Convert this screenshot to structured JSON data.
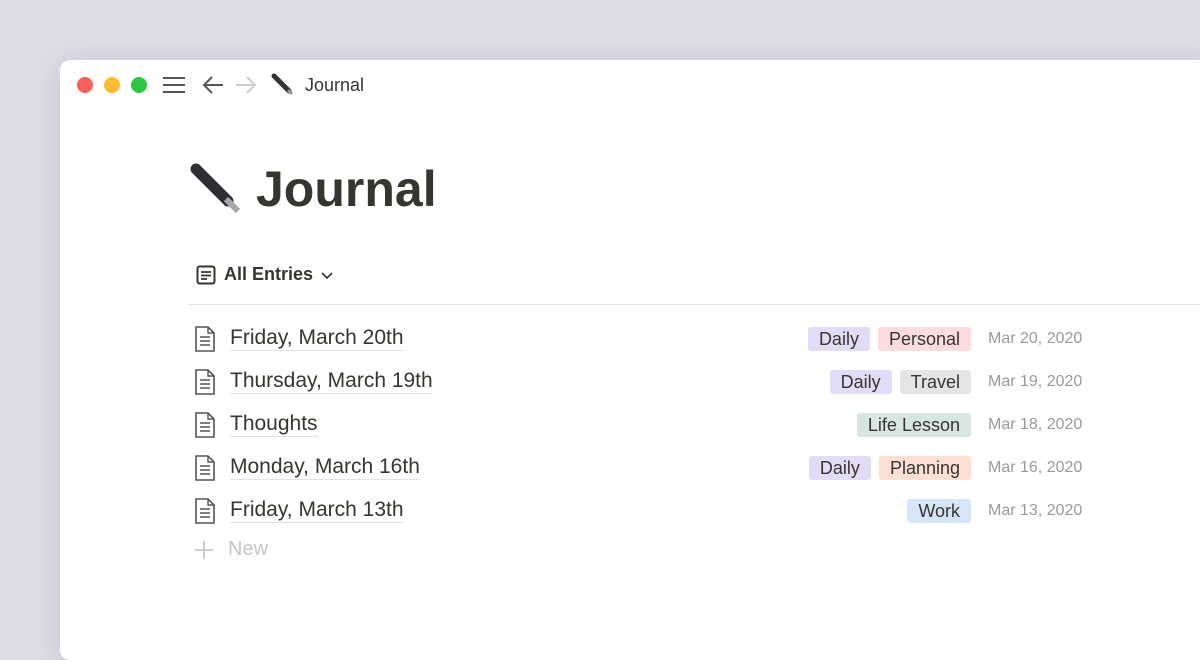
{
  "window": {
    "title": "Journal",
    "title_icon": "fountain-pen-icon"
  },
  "page": {
    "title": "Journal",
    "icon": "fountain-pen-icon"
  },
  "view": {
    "label": "All Entries",
    "icon": "list-view-icon"
  },
  "entries": [
    {
      "name": "Friday, March 20th",
      "tags": [
        {
          "label": "Daily",
          "color": "#e3dcf8"
        },
        {
          "label": "Personal",
          "color": "#fcdcdc"
        }
      ],
      "date": "Mar 20, 2020"
    },
    {
      "name": "Thursday, March 19th",
      "tags": [
        {
          "label": "Daily",
          "color": "#e3dcf8"
        },
        {
          "label": "Travel",
          "color": "#e6e5e6"
        }
      ],
      "date": "Mar 19, 2020"
    },
    {
      "name": "Thoughts",
      "tags": [
        {
          "label": "Life Lesson",
          "color": "#d8e6e2"
        }
      ],
      "date": "Mar 18, 2020"
    },
    {
      "name": "Monday, March 16th",
      "tags": [
        {
          "label": "Daily",
          "color": "#e3dcf8"
        },
        {
          "label": "Planning",
          "color": "#fddfd3"
        }
      ],
      "date": "Mar 16, 2020"
    },
    {
      "name": "Friday, March 13th",
      "tags": [
        {
          "label": "Work",
          "color": "#d6e6f8"
        }
      ],
      "date": "Mar 13, 2020"
    }
  ],
  "new_label": "New"
}
